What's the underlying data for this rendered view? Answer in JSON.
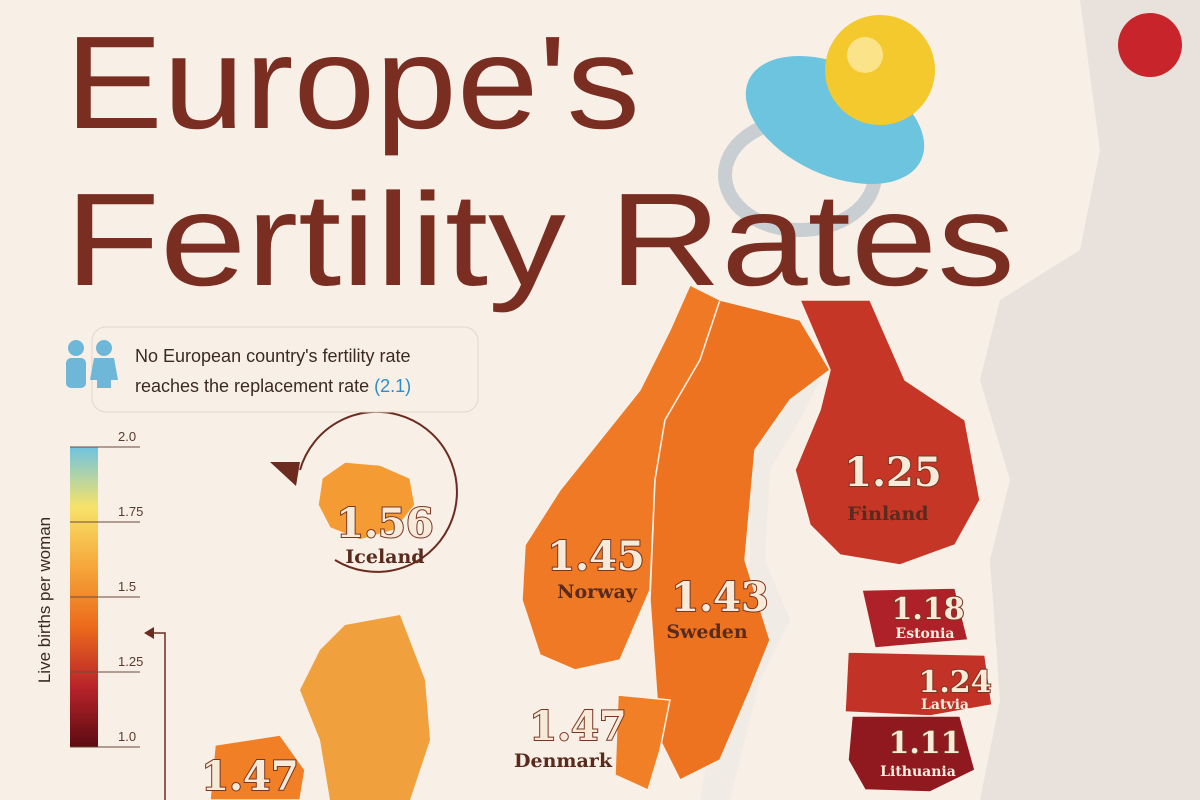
{
  "title_line1": "Europe's",
  "title_line2": "Fertility Rates",
  "note": {
    "line1": "No European country's fertility rate",
    "line2": "reaches the replacement rate",
    "highlight": "(2.1)"
  },
  "legend": {
    "title": "Live births per woman",
    "range": [
      1,
      2
    ],
    "ticks": [
      {
        "value": 2,
        "label": "2.0"
      },
      1.75,
      1.5,
      1.25,
      {
        "value": 1,
        "label": "1.0"
      }
    ],
    "colors": [
      "#5c0b12",
      "#b8242a",
      "#ec6a1c",
      "#f6a73a",
      "#f7e36a",
      "#6fc3e0"
    ]
  },
  "regions": [
    {
      "name": "Iceland",
      "value": 1.56
    },
    {
      "name": "Norway",
      "value": 1.45
    },
    {
      "name": "Sweden",
      "value": 1.43
    },
    {
      "name": "Finland",
      "value": 1.25
    },
    {
      "name": "Estonia",
      "value": 1.18
    },
    {
      "name": "Latvia",
      "value": 1.24
    },
    {
      "name": "Lithuania",
      "value": 1.11
    },
    {
      "name": "Denmark",
      "value": 1.47
    },
    {
      "value": 1.47
    }
  ]
}
